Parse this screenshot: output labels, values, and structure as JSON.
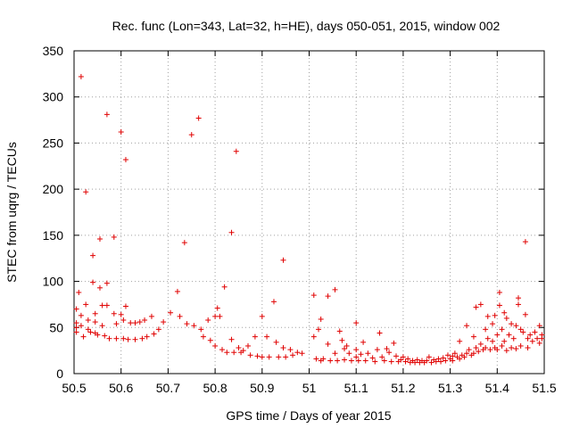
{
  "chart_data": {
    "type": "scatter",
    "title": "Rec. func (Lon=343, Lat=32, h=HE), days 050-051, 2015, window 002",
    "xlabel": "GPS time / Days of year 2015",
    "ylabel": "STEC from uqrg / TECUs",
    "xlim": [
      50.5,
      51.5
    ],
    "ylim": [
      0,
      350
    ],
    "xticks": [
      50.5,
      50.6,
      50.7,
      50.8,
      50.9,
      51.0,
      51.1,
      51.2,
      51.3,
      51.4,
      51.5
    ],
    "xtick_labels": [
      "50.5",
      "50.6",
      "50.7",
      "50.8",
      "50.9",
      "51",
      "51.1",
      "51.2",
      "51.3",
      "51.4",
      "51.5"
    ],
    "yticks": [
      0,
      50,
      100,
      150,
      200,
      250,
      300,
      350
    ],
    "ytick_labels": [
      "0",
      "50",
      "100",
      "150",
      "200",
      "250",
      "300",
      "350"
    ],
    "grid": true,
    "marker": "+",
    "color": "#e00000",
    "series": [
      {
        "name": "STEC",
        "points": [
          [
            50.505,
            70
          ],
          [
            50.505,
            55
          ],
          [
            50.505,
            50
          ],
          [
            50.505,
            45
          ],
          [
            50.51,
            88
          ],
          [
            50.515,
            322
          ],
          [
            50.515,
            63
          ],
          [
            50.515,
            52
          ],
          [
            50.52,
            40
          ],
          [
            50.525,
            197
          ],
          [
            50.525,
            75
          ],
          [
            50.53,
            58
          ],
          [
            50.53,
            48
          ],
          [
            50.535,
            45
          ],
          [
            50.54,
            128
          ],
          [
            50.54,
            99
          ],
          [
            50.545,
            65
          ],
          [
            50.545,
            56
          ],
          [
            50.545,
            44
          ],
          [
            50.55,
            42
          ],
          [
            50.555,
            93
          ],
          [
            50.555,
            146
          ],
          [
            50.56,
            74
          ],
          [
            50.56,
            52
          ],
          [
            50.565,
            41
          ],
          [
            50.57,
            281
          ],
          [
            50.57,
            98
          ],
          [
            50.57,
            74
          ],
          [
            50.575,
            38
          ],
          [
            50.585,
            148
          ],
          [
            50.585,
            65
          ],
          [
            50.59,
            54
          ],
          [
            50.59,
            38
          ],
          [
            50.6,
            262
          ],
          [
            50.6,
            64
          ],
          [
            50.605,
            58
          ],
          [
            50.605,
            38
          ],
          [
            50.61,
            232
          ],
          [
            50.61,
            73
          ],
          [
            50.615,
            37
          ],
          [
            50.62,
            55
          ],
          [
            50.63,
            55
          ],
          [
            50.63,
            37
          ],
          [
            50.64,
            56
          ],
          [
            50.645,
            38
          ],
          [
            50.65,
            58
          ],
          [
            50.655,
            40
          ],
          [
            50.665,
            62
          ],
          [
            50.67,
            43
          ],
          [
            50.68,
            48
          ],
          [
            50.69,
            56
          ],
          [
            50.705,
            66
          ],
          [
            50.72,
            89
          ],
          [
            50.725,
            62
          ],
          [
            50.735,
            142
          ],
          [
            50.74,
            54
          ],
          [
            50.75,
            259
          ],
          [
            50.755,
            52
          ],
          [
            50.765,
            277
          ],
          [
            50.77,
            48
          ],
          [
            50.775,
            40
          ],
          [
            50.785,
            58
          ],
          [
            50.79,
            36
          ],
          [
            50.8,
            62
          ],
          [
            50.8,
            30
          ],
          [
            50.805,
            71
          ],
          [
            50.81,
            62
          ],
          [
            50.815,
            26
          ],
          [
            50.82,
            94
          ],
          [
            50.825,
            23
          ],
          [
            50.835,
            153
          ],
          [
            50.835,
            37
          ],
          [
            50.84,
            23
          ],
          [
            50.845,
            241
          ],
          [
            50.85,
            28
          ],
          [
            50.855,
            23
          ],
          [
            50.86,
            25
          ],
          [
            50.87,
            30
          ],
          [
            50.875,
            20
          ],
          [
            50.885,
            40
          ],
          [
            50.89,
            19
          ],
          [
            50.9,
            62
          ],
          [
            50.9,
            18
          ],
          [
            50.91,
            40
          ],
          [
            50.915,
            18
          ],
          [
            50.925,
            78
          ],
          [
            50.93,
            34
          ],
          [
            50.935,
            18
          ],
          [
            50.945,
            123
          ],
          [
            50.945,
            28
          ],
          [
            50.95,
            18
          ],
          [
            50.96,
            26
          ],
          [
            50.965,
            20
          ],
          [
            50.975,
            23
          ],
          [
            50.985,
            22
          ],
          [
            51.01,
            85
          ],
          [
            51.01,
            40
          ],
          [
            51.015,
            16
          ],
          [
            51.02,
            48
          ],
          [
            51.025,
            59
          ],
          [
            51.025,
            14
          ],
          [
            51.03,
            16
          ],
          [
            51.04,
            84
          ],
          [
            51.04,
            32
          ],
          [
            51.045,
            14
          ],
          [
            51.055,
            91
          ],
          [
            51.055,
            22
          ],
          [
            51.06,
            14
          ],
          [
            51.065,
            46
          ],
          [
            51.07,
            36
          ],
          [
            51.075,
            15
          ],
          [
            51.075,
            27
          ],
          [
            51.08,
            30
          ],
          [
            51.085,
            22
          ],
          [
            51.09,
            14
          ],
          [
            51.1,
            55
          ],
          [
            51.1,
            26
          ],
          [
            51.1,
            18
          ],
          [
            51.105,
            14
          ],
          [
            51.11,
            21
          ],
          [
            51.115,
            34
          ],
          [
            51.12,
            14
          ],
          [
            51.125,
            22
          ],
          [
            51.135,
            17
          ],
          [
            51.14,
            13
          ],
          [
            51.145,
            26
          ],
          [
            51.15,
            44
          ],
          [
            51.155,
            18
          ],
          [
            51.16,
            14
          ],
          [
            51.165,
            27
          ],
          [
            51.17,
            23
          ],
          [
            51.175,
            13
          ],
          [
            51.18,
            33
          ],
          [
            51.185,
            19
          ],
          [
            51.19,
            13
          ],
          [
            51.195,
            15
          ],
          [
            51.2,
            18
          ],
          [
            51.205,
            13
          ],
          [
            51.21,
            16
          ],
          [
            51.215,
            12
          ],
          [
            51.22,
            14
          ],
          [
            51.225,
            12
          ],
          [
            51.23,
            15
          ],
          [
            51.235,
            12
          ],
          [
            51.24,
            14
          ],
          [
            51.245,
            12
          ],
          [
            51.25,
            14
          ],
          [
            51.255,
            18
          ],
          [
            51.26,
            12
          ],
          [
            51.265,
            15
          ],
          [
            51.27,
            13
          ],
          [
            51.275,
            16
          ],
          [
            51.28,
            13
          ],
          [
            51.285,
            17
          ],
          [
            51.29,
            14
          ],
          [
            51.295,
            20
          ],
          [
            51.3,
            16
          ],
          [
            51.305,
            19
          ],
          [
            51.305,
            14
          ],
          [
            51.31,
            22
          ],
          [
            51.315,
            18
          ],
          [
            51.32,
            35
          ],
          [
            51.32,
            16
          ],
          [
            51.325,
            20
          ],
          [
            51.33,
            18
          ],
          [
            51.335,
            52
          ],
          [
            51.335,
            22
          ],
          [
            51.34,
            26
          ],
          [
            51.345,
            20
          ],
          [
            51.35,
            40
          ],
          [
            51.35,
            22
          ],
          [
            51.355,
            72
          ],
          [
            51.355,
            28
          ],
          [
            51.36,
            24
          ],
          [
            51.365,
            75
          ],
          [
            51.365,
            32
          ],
          [
            51.37,
            26
          ],
          [
            51.375,
            48
          ],
          [
            51.375,
            28
          ],
          [
            51.38,
            62
          ],
          [
            51.38,
            38
          ],
          [
            51.385,
            26
          ],
          [
            51.39,
            54
          ],
          [
            51.39,
            35
          ],
          [
            51.395,
            63
          ],
          [
            51.395,
            28
          ],
          [
            51.4,
            42
          ],
          [
            51.4,
            26
          ],
          [
            51.405,
            88
          ],
          [
            51.405,
            74
          ],
          [
            51.41,
            48
          ],
          [
            51.41,
            30
          ],
          [
            51.415,
            66
          ],
          [
            51.415,
            35
          ],
          [
            51.42,
            60
          ],
          [
            51.42,
            25
          ],
          [
            51.425,
            42
          ],
          [
            51.43,
            54
          ],
          [
            51.43,
            28
          ],
          [
            51.435,
            38
          ],
          [
            51.44,
            52
          ],
          [
            51.44,
            27
          ],
          [
            51.445,
            82
          ],
          [
            51.445,
            75
          ],
          [
            51.45,
            48
          ],
          [
            51.45,
            30
          ],
          [
            51.455,
            45
          ],
          [
            51.46,
            143
          ],
          [
            51.46,
            64
          ],
          [
            51.465,
            38
          ],
          [
            51.465,
            28
          ],
          [
            51.47,
            42
          ],
          [
            51.475,
            35
          ],
          [
            51.48,
            45
          ],
          [
            51.485,
            38
          ],
          [
            51.49,
            52
          ],
          [
            51.49,
            33
          ],
          [
            51.495,
            42
          ],
          [
            51.495,
            38
          ]
        ]
      }
    ]
  }
}
